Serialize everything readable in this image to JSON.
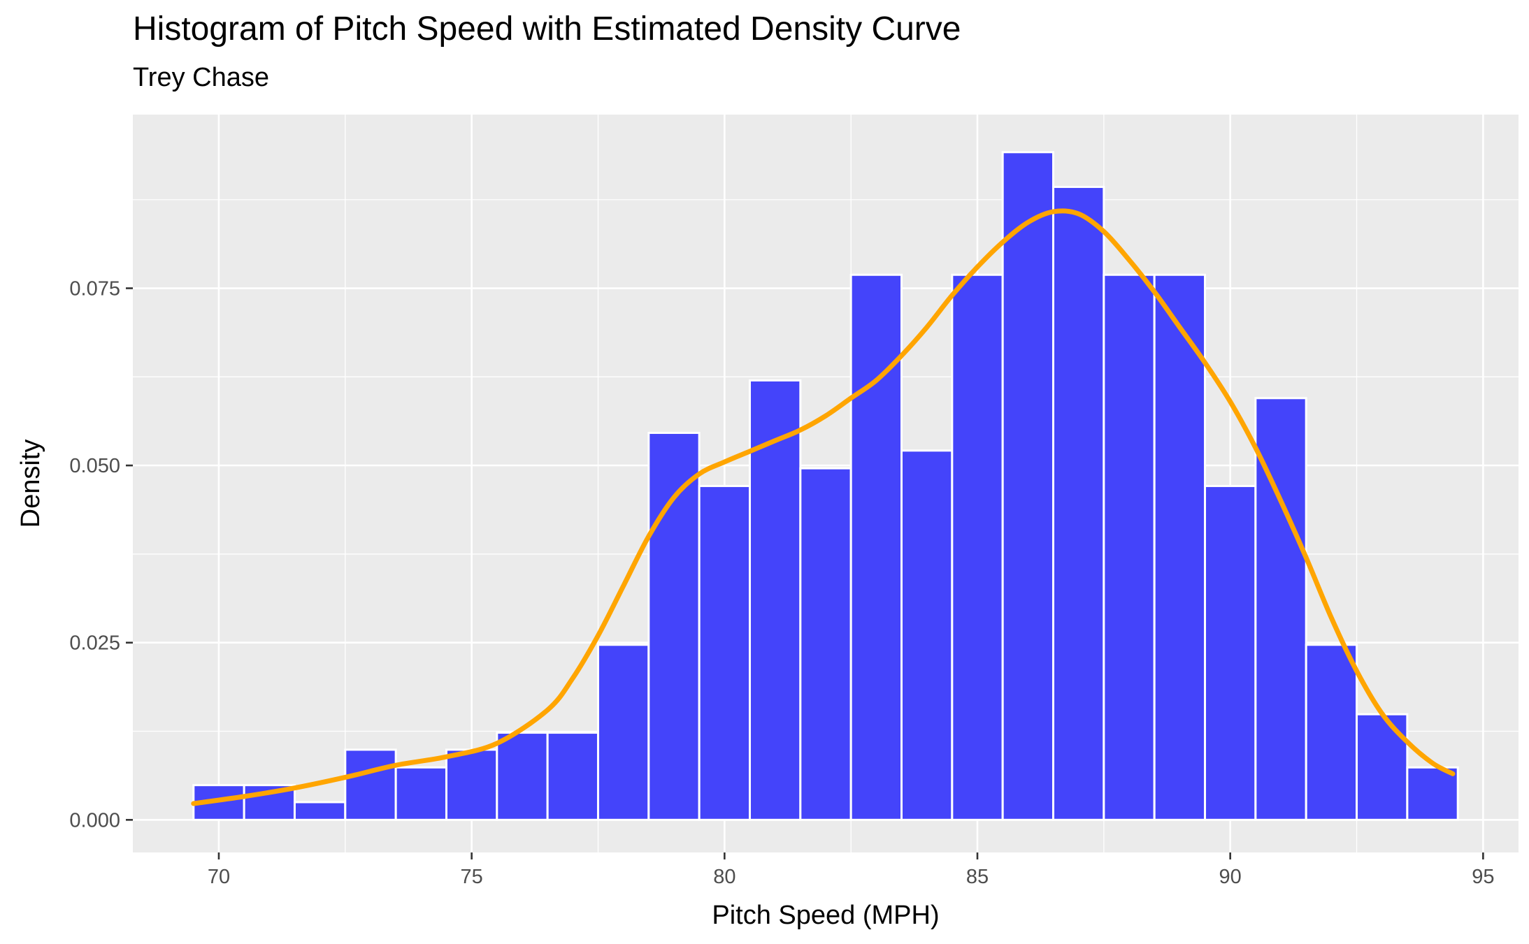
{
  "chart_data": {
    "type": "bar",
    "title": "Histogram of Pitch Speed with Estimated Density Curve",
    "subtitle": "Trey Chase",
    "xlabel": "Pitch Speed (MPH)",
    "ylabel": "Density",
    "xlim": [
      68.3,
      95.7
    ],
    "ylim": [
      -0.0046,
      0.0995
    ],
    "x_ticks": [
      70,
      75,
      80,
      85,
      90,
      95
    ],
    "x_tick_labels": [
      "70",
      "75",
      "80",
      "85",
      "90",
      "95"
    ],
    "y_ticks": [
      0,
      0.025,
      0.05,
      0.075
    ],
    "y_tick_labels": [
      "0.000",
      "0.025",
      "0.050",
      "0.075"
    ],
    "grid": true,
    "bin_width": 1,
    "bins": [
      {
        "x": 70,
        "density": 0.0049
      },
      {
        "x": 71,
        "density": 0.0049
      },
      {
        "x": 72,
        "density": 0.0025
      },
      {
        "x": 73,
        "density": 0.0099
      },
      {
        "x": 74,
        "density": 0.0074
      },
      {
        "x": 75,
        "density": 0.0099
      },
      {
        "x": 76,
        "density": 0.0123
      },
      {
        "x": 77,
        "density": 0.0123
      },
      {
        "x": 78,
        "density": 0.0247
      },
      {
        "x": 79,
        "density": 0.0546
      },
      {
        "x": 80,
        "density": 0.0471
      },
      {
        "x": 81,
        "density": 0.062
      },
      {
        "x": 82,
        "density": 0.0496
      },
      {
        "x": 83,
        "density": 0.0769
      },
      {
        "x": 84,
        "density": 0.0521
      },
      {
        "x": 85,
        "density": 0.0769
      },
      {
        "x": 86,
        "density": 0.0942
      },
      {
        "x": 87,
        "density": 0.0893
      },
      {
        "x": 88,
        "density": 0.0769
      },
      {
        "x": 89,
        "density": 0.0769
      },
      {
        "x": 90,
        "density": 0.0471
      },
      {
        "x": 91,
        "density": 0.0595
      },
      {
        "x": 92,
        "density": 0.0247
      },
      {
        "x": 93,
        "density": 0.0149
      },
      {
        "x": 94,
        "density": 0.0074
      }
    ],
    "density_curve": {
      "x": [
        69.5,
        70.5,
        71.5,
        72.5,
        73.5,
        74.5,
        75.5,
        76.5,
        77.0,
        77.5,
        78.0,
        78.5,
        79.0,
        79.5,
        80.0,
        80.5,
        81.0,
        81.5,
        82.0,
        82.5,
        83.0,
        83.5,
        84.0,
        84.5,
        85.0,
        85.5,
        86.0,
        86.5,
        87.0,
        87.5,
        88.0,
        88.5,
        89.0,
        89.5,
        90.0,
        90.5,
        91.0,
        91.5,
        92.0,
        92.5,
        93.0,
        93.5,
        94.0,
        94.4
      ],
      "y": [
        0.0023,
        0.0033,
        0.0045,
        0.006,
        0.0077,
        0.0089,
        0.0108,
        0.0155,
        0.02,
        0.026,
        0.033,
        0.04,
        0.0455,
        0.0488,
        0.0505,
        0.052,
        0.0535,
        0.055,
        0.057,
        0.0595,
        0.062,
        0.0655,
        0.0695,
        0.074,
        0.078,
        0.0815,
        0.0843,
        0.0858,
        0.0855,
        0.083,
        0.079,
        0.0745,
        0.0695,
        0.0645,
        0.059,
        0.0525,
        0.045,
        0.037,
        0.0285,
        0.021,
        0.015,
        0.011,
        0.008,
        0.0065
      ],
      "color": "#FFA500"
    },
    "bar_color": "#4444FA",
    "bar_outline": "#FFFFFF",
    "panel_background": "#EBEBEB",
    "grid_color": "#FFFFFF"
  }
}
